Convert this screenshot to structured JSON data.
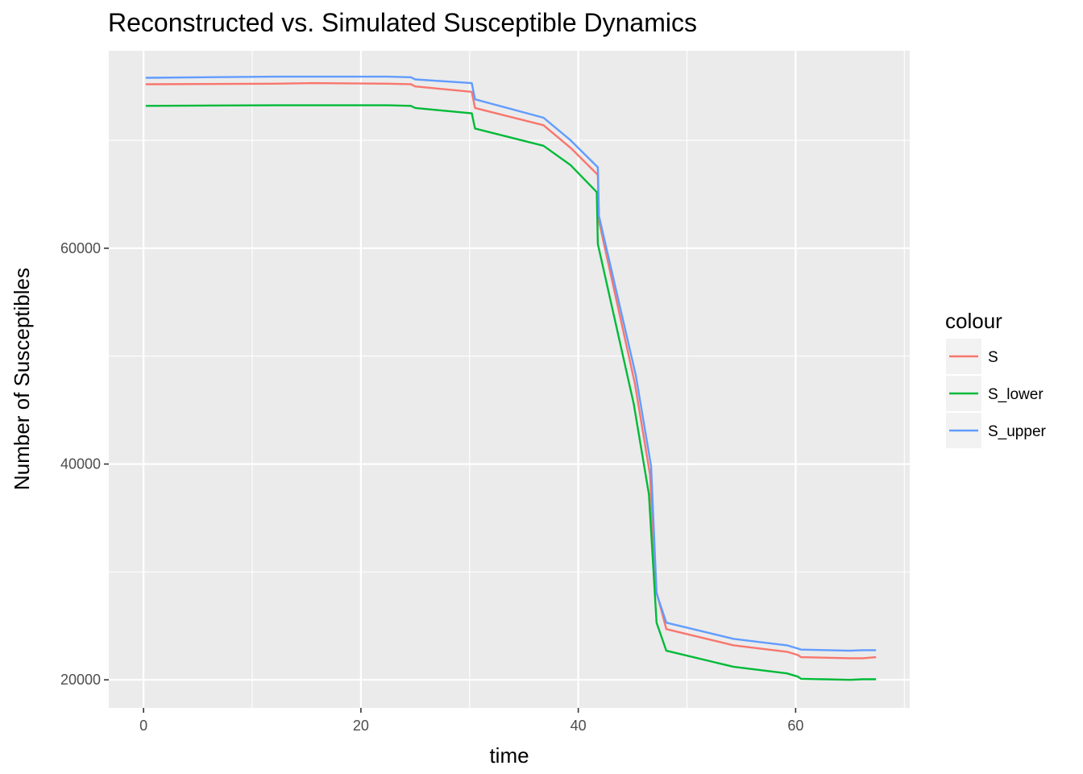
{
  "chart_data": {
    "type": "line",
    "title": "Reconstructed vs. Simulated Susceptible Dynamics",
    "xlabel": "time",
    "ylabel": "Number of Susceptibles",
    "xlim": [
      -3.2,
      70.5
    ],
    "ylim": [
      17400,
      78300
    ],
    "x_ticks": [
      0,
      20,
      40,
      60
    ],
    "x_minor_ticks": [
      10,
      30,
      50,
      70
    ],
    "y_ticks": [
      20000,
      40000,
      60000
    ],
    "y_minor_ticks": [
      30000,
      50000,
      70000
    ],
    "x_tick_labels": [
      "0",
      "20",
      "40",
      "60"
    ],
    "y_tick_labels": [
      "20000",
      "40000",
      "60000"
    ],
    "grid": true,
    "legend": {
      "title": "colour",
      "position": "right"
    },
    "series": [
      {
        "name": "S",
        "color": "#F8766D",
        "points": [
          [
            0.2,
            75200
          ],
          [
            12,
            75250
          ],
          [
            15.5,
            75300
          ],
          [
            22.5,
            75250
          ],
          [
            24.6,
            75200
          ],
          [
            25,
            75000
          ],
          [
            30.2,
            74500
          ],
          [
            30.5,
            73000
          ],
          [
            36.8,
            71400
          ],
          [
            39.3,
            69300
          ],
          [
            41.8,
            66800
          ],
          [
            41.9,
            62500
          ],
          [
            45.2,
            47500
          ],
          [
            46.6,
            39000
          ],
          [
            47.1,
            28500
          ],
          [
            48.1,
            24700
          ],
          [
            54.3,
            23200
          ],
          [
            59.2,
            22600
          ],
          [
            60.2,
            22300
          ],
          [
            60.5,
            22100
          ],
          [
            65,
            22000
          ],
          [
            66.2,
            22000
          ],
          [
            67.4,
            22100
          ]
        ]
      },
      {
        "name": "S_lower",
        "color": "#00BA38",
        "points": [
          [
            0.2,
            73200
          ],
          [
            12,
            73250
          ],
          [
            15.5,
            73250
          ],
          [
            22.5,
            73250
          ],
          [
            24.6,
            73200
          ],
          [
            25,
            73000
          ],
          [
            30.2,
            72500
          ],
          [
            30.5,
            71100
          ],
          [
            36.8,
            69500
          ],
          [
            39.3,
            67700
          ],
          [
            41.7,
            65200
          ],
          [
            41.8,
            60400
          ],
          [
            45.1,
            45600
          ],
          [
            46.5,
            37200
          ],
          [
            47.2,
            25300
          ],
          [
            48.1,
            22700
          ],
          [
            54.3,
            21200
          ],
          [
            59.2,
            20600
          ],
          [
            60.2,
            20300
          ],
          [
            60.5,
            20100
          ],
          [
            65,
            20000
          ],
          [
            66.2,
            20050
          ],
          [
            67.4,
            20050
          ]
        ]
      },
      {
        "name": "S_upper",
        "color": "#619CFF",
        "points": [
          [
            0.2,
            75800
          ],
          [
            12,
            75900
          ],
          [
            15.5,
            75900
          ],
          [
            22.5,
            75900
          ],
          [
            24.6,
            75850
          ],
          [
            25,
            75650
          ],
          [
            30.2,
            75300
          ],
          [
            30.5,
            73800
          ],
          [
            36.8,
            72100
          ],
          [
            39.3,
            70000
          ],
          [
            41.8,
            67500
          ],
          [
            41.9,
            63000
          ],
          [
            45.3,
            48200
          ],
          [
            46.7,
            39800
          ],
          [
            47.2,
            28000
          ],
          [
            48.1,
            25300
          ],
          [
            54.3,
            23800
          ],
          [
            59.2,
            23200
          ],
          [
            60.2,
            22900
          ],
          [
            60.5,
            22800
          ],
          [
            65,
            22700
          ],
          [
            66.2,
            22750
          ],
          [
            67.4,
            22750
          ]
        ]
      }
    ]
  }
}
